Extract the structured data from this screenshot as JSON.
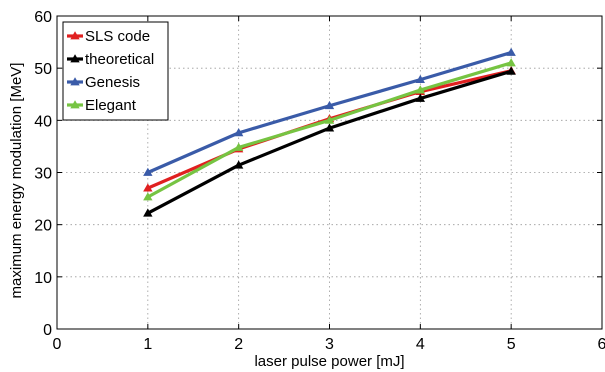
{
  "chart_data": {
    "type": "line",
    "xlabel": "laser pulse power [mJ]",
    "ylabel": "maximum energy modulation [MeV]",
    "xlim": [
      0,
      6
    ],
    "ylim": [
      0,
      60
    ],
    "xticks": [
      "0",
      "1",
      "2",
      "3",
      "4",
      "5",
      "6"
    ],
    "yticks": [
      "0",
      "10",
      "20",
      "30",
      "40",
      "50",
      "60"
    ],
    "grid": true,
    "legend_position": "top-left",
    "x": [
      1,
      2,
      3,
      4,
      5
    ],
    "series": [
      {
        "name": "SLS code",
        "color": "#e02020",
        "values": [
          27.0,
          34.5,
          40.3,
          45.5,
          49.5
        ]
      },
      {
        "name": "theoretical",
        "color": "#000000",
        "values": [
          22.2,
          31.4,
          38.5,
          44.2,
          49.4
        ]
      },
      {
        "name": "Genesis",
        "color": "#3a5ba8",
        "values": [
          30.0,
          37.6,
          42.8,
          47.8,
          53.0
        ]
      },
      {
        "name": "Elegant",
        "color": "#76c442",
        "values": [
          25.3,
          34.8,
          40.0,
          45.8,
          51.0
        ]
      }
    ]
  }
}
